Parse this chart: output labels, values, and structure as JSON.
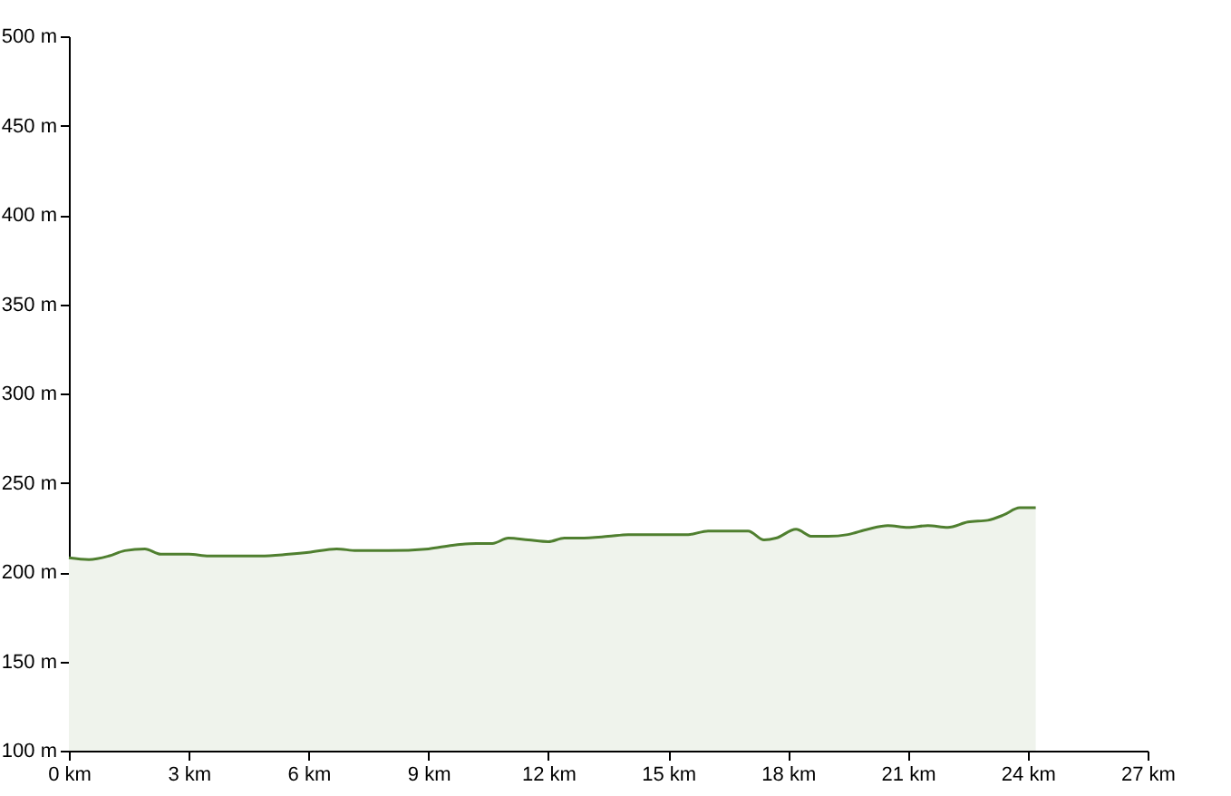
{
  "chart_data": {
    "type": "area",
    "x": [
      0,
      0.5,
      1.0,
      1.4,
      1.9,
      2.3,
      3.0,
      3.5,
      4.0,
      4.8,
      5.5,
      6.0,
      6.7,
      7.2,
      8.0,
      9.0,
      9.6,
      10.2,
      10.6,
      11.0,
      11.5,
      12.0,
      12.4,
      12.8,
      13.5,
      14.0,
      14.6,
      15.0,
      15.5,
      16.0,
      16.5,
      17.0,
      17.4,
      17.7,
      18.2,
      18.6,
      19.0,
      19.5,
      20.0,
      20.5,
      21.0,
      21.5,
      22.0,
      22.5,
      23.0,
      23.4,
      23.8,
      24.2
    ],
    "series": [
      {
        "color": "#4f7f2f",
        "values": [
          208,
          207,
          209,
          212,
          213,
          210,
          210,
          209,
          209,
          209,
          210,
          211,
          213,
          212,
          212,
          213,
          215,
          216,
          216,
          219,
          218,
          217,
          219,
          219,
          220,
          221,
          221,
          221,
          221,
          223,
          223,
          223,
          218,
          219,
          224,
          220,
          220,
          221,
          224,
          226,
          225,
          226,
          225,
          228,
          229,
          232,
          236,
          236
        ]
      }
    ],
    "xlim": [
      0,
      27
    ],
    "xticks": [
      {
        "value": 0,
        "label": "0 km"
      },
      {
        "value": 3,
        "label": "3 km"
      },
      {
        "value": 6,
        "label": "6 km"
      },
      {
        "value": 9,
        "label": "9 km"
      },
      {
        "value": 12,
        "label": "12 km"
      },
      {
        "value": 15,
        "label": "15 km"
      },
      {
        "value": 18,
        "label": "18 km"
      },
      {
        "value": 21,
        "label": "21 km"
      },
      {
        "value": 24,
        "label": "24 km"
      },
      {
        "value": 27,
        "label": "27 km"
      }
    ],
    "ylim": [
      100,
      500
    ],
    "yticks": [
      {
        "value": 100,
        "label": "100 m"
      },
      {
        "value": 150,
        "label": "150 m"
      },
      {
        "value": 200,
        "label": "200 m"
      },
      {
        "value": 250,
        "label": "250 m"
      },
      {
        "value": 300,
        "label": "300 m"
      },
      {
        "value": 350,
        "label": "350 m"
      },
      {
        "value": 400,
        "label": "400 m"
      },
      {
        "value": 450,
        "label": "450 m"
      },
      {
        "value": 500,
        "label": "500 m"
      }
    ],
    "grid": false
  }
}
